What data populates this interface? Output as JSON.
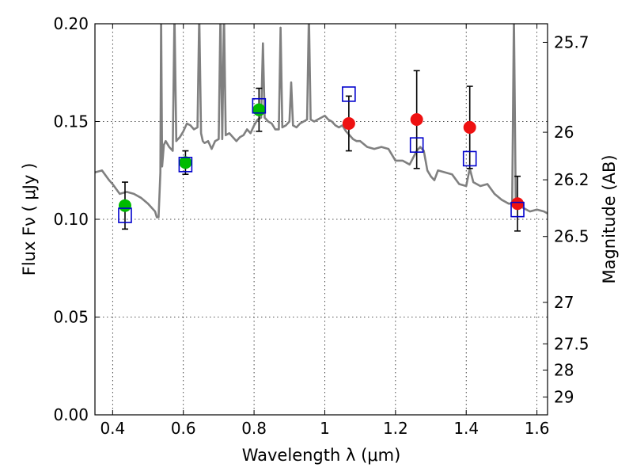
{
  "chart_data": {
    "type": "scatter",
    "title": "",
    "xlabel": "Wavelength  λ (μm)",
    "ylabel": "Flux  Fν  ( μJy )",
    "y2label": "Magnitude (AB)",
    "xlim": [
      0.35,
      1.63
    ],
    "ylim": [
      0.0,
      0.2
    ],
    "grid": true,
    "x_ticks": [
      "0.4",
      "0.6",
      "0.8",
      "1",
      "1.2",
      "1.4",
      "1.6"
    ],
    "y_ticks": [
      "0.00",
      "0.05",
      "0.10",
      "0.15",
      "0.20"
    ],
    "y2_ticks": [
      {
        "label": "25.7",
        "flux": 0.1905
      },
      {
        "label": "26",
        "flux": 0.1445
      },
      {
        "label": "26.2",
        "flux": 0.1202
      },
      {
        "label": "26.5",
        "flux": 0.0912
      },
      {
        "label": "27",
        "flux": 0.0575
      },
      {
        "label": "27.5",
        "flux": 0.0363
      },
      {
        "label": "28",
        "flux": 0.0229
      },
      {
        "label": "29",
        "flux": 0.0091
      }
    ],
    "colors": {
      "model": "#808080",
      "optical_points": "#00bb00",
      "nir_points": "#ee1111",
      "model_photometry": "#0000cc",
      "errorbars": "#000000"
    },
    "series": [
      {
        "type": "line",
        "color": "#808080",
        "x": [
          0.35,
          0.37,
          0.39,
          0.4,
          0.42,
          0.44,
          0.46,
          0.48,
          0.5,
          0.52,
          0.525,
          0.53,
          0.535,
          0.537,
          0.54,
          0.545,
          0.55,
          0.56,
          0.57,
          0.575,
          0.58,
          0.585,
          0.59,
          0.6,
          0.61,
          0.62,
          0.63,
          0.64,
          0.645,
          0.65,
          0.655,
          0.66,
          0.67,
          0.68,
          0.69,
          0.7,
          0.705,
          0.71,
          0.715,
          0.72,
          0.73,
          0.74,
          0.75,
          0.76,
          0.77,
          0.78,
          0.79,
          0.8,
          0.81,
          0.82,
          0.825,
          0.83,
          0.84,
          0.85,
          0.86,
          0.87,
          0.875,
          0.88,
          0.89,
          0.9,
          0.905,
          0.91,
          0.92,
          0.93,
          0.94,
          0.95,
          0.955,
          0.96,
          0.97,
          0.98,
          0.99,
          1.0,
          1.01,
          1.02,
          1.03,
          1.04,
          1.05,
          1.06,
          1.07,
          1.08,
          1.09,
          1.1,
          1.12,
          1.14,
          1.16,
          1.18,
          1.2,
          1.21,
          1.22,
          1.24,
          1.26,
          1.27,
          1.28,
          1.29,
          1.3,
          1.31,
          1.32,
          1.34,
          1.36,
          1.38,
          1.4,
          1.41,
          1.42,
          1.44,
          1.46,
          1.48,
          1.5,
          1.52,
          1.53,
          1.535,
          1.54,
          1.55,
          1.56,
          1.57,
          1.58,
          1.6,
          1.62,
          1.63
        ],
        "y": [
          0.124,
          0.125,
          0.12,
          0.118,
          0.113,
          0.114,
          0.113,
          0.111,
          0.108,
          0.104,
          0.101,
          0.101,
          0.124,
          0.205,
          0.127,
          0.138,
          0.14,
          0.137,
          0.135,
          0.205,
          0.14,
          0.141,
          0.142,
          0.145,
          0.149,
          0.148,
          0.146,
          0.147,
          0.205,
          0.144,
          0.14,
          0.139,
          0.14,
          0.136,
          0.14,
          0.141,
          0.205,
          0.141,
          0.205,
          0.143,
          0.144,
          0.142,
          0.14,
          0.142,
          0.143,
          0.146,
          0.144,
          0.148,
          0.151,
          0.152,
          0.19,
          0.152,
          0.15,
          0.149,
          0.146,
          0.146,
          0.198,
          0.147,
          0.148,
          0.15,
          0.17,
          0.148,
          0.147,
          0.149,
          0.15,
          0.151,
          0.205,
          0.151,
          0.15,
          0.151,
          0.152,
          0.153,
          0.151,
          0.15,
          0.148,
          0.147,
          0.148,
          0.145,
          0.143,
          0.141,
          0.14,
          0.14,
          0.137,
          0.136,
          0.137,
          0.136,
          0.13,
          0.13,
          0.13,
          0.128,
          0.135,
          0.137,
          0.135,
          0.125,
          0.122,
          0.12,
          0.125,
          0.124,
          0.123,
          0.118,
          0.117,
          0.126,
          0.119,
          0.117,
          0.118,
          0.113,
          0.11,
          0.108,
          0.108,
          0.205,
          0.108,
          0.107,
          0.106,
          0.105,
          0.104,
          0.105,
          0.104,
          0.103
        ]
      },
      {
        "name": "",
        "type": "scatter",
        "marker": "circle",
        "color": "#00bb00",
        "x": [
          0.435,
          0.606,
          0.814
        ],
        "y": [
          0.107,
          0.129,
          0.156
        ],
        "yerr": [
          0.012,
          0.006,
          0.011
        ]
      },
      {
        "name": "",
        "type": "scatter",
        "marker": "circle",
        "color": "#ee1111",
        "x": [
          1.068,
          1.26,
          1.41,
          1.545
        ],
        "y": [
          0.149,
          0.151,
          0.147,
          0.108
        ],
        "yerr": [
          0.014,
          0.025,
          0.021,
          0.014
        ]
      },
      {
        "name": "",
        "type": "scatter",
        "marker": "open-square",
        "color": "#0000cc",
        "x": [
          0.435,
          0.606,
          0.814,
          1.068,
          1.26,
          1.41,
          1.545
        ],
        "y": [
          0.102,
          0.128,
          0.158,
          0.164,
          0.138,
          0.131,
          0.105
        ]
      }
    ]
  }
}
